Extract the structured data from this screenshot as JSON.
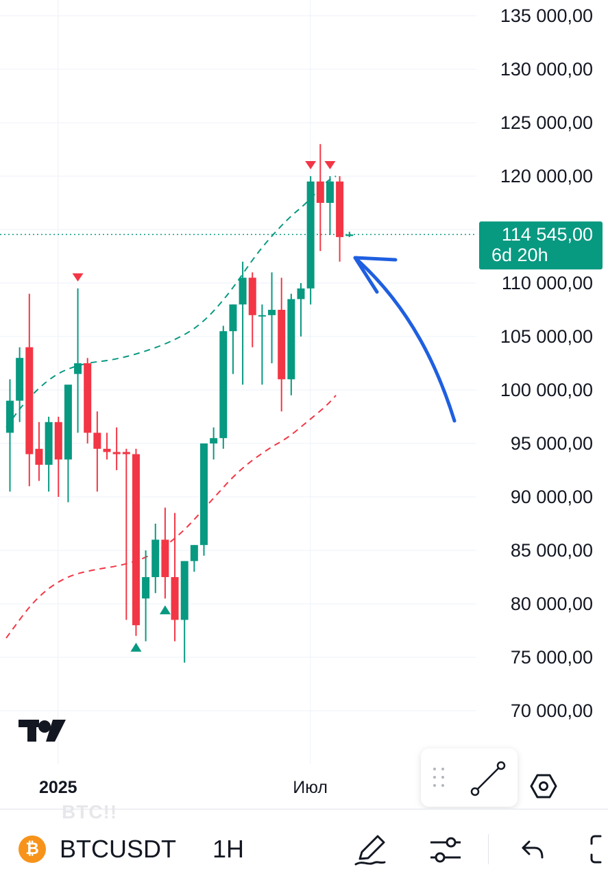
{
  "chart_data": {
    "type": "candlestick",
    "symbol": "BTCUSDT",
    "interval": "1H",
    "y_range": [
      67000,
      137000
    ],
    "price_ticks": [
      "135 000,00",
      "130 000,00",
      "125 000,00",
      "120 000,00",
      "110 000,00",
      "105 000,00",
      "100 000,00",
      "95 000,00",
      "90 000,00",
      "85 000,00",
      "80 000,00",
      "75 000,00",
      "70 000,00"
    ],
    "price_tick_values": [
      135000,
      130000,
      125000,
      120000,
      110000,
      105000,
      100000,
      95000,
      90000,
      85000,
      80000,
      75000,
      70000
    ],
    "time_labels": [
      {
        "label": "2025",
        "bold": true,
        "index": 5
      },
      {
        "label": "Июл",
        "bold": false,
        "index": 31
      }
    ],
    "current_price": {
      "price": 114545,
      "price_label": "114 545,00",
      "countdown": "6d 20h"
    },
    "candles": [
      {
        "o": 96000,
        "h": 101000,
        "l": 90500,
        "c": 99000
      },
      {
        "o": 99000,
        "h": 104000,
        "l": 97000,
        "c": 103000
      },
      {
        "o": 104000,
        "h": 109000,
        "l": 91000,
        "c": 94000
      },
      {
        "o": 94500,
        "h": 97000,
        "l": 91500,
        "c": 93000
      },
      {
        "o": 93000,
        "h": 97500,
        "l": 90500,
        "c": 97000
      },
      {
        "o": 97000,
        "h": 97500,
        "l": 90000,
        "c": 93500
      },
      {
        "o": 93500,
        "h": 100000,
        "l": 89500,
        "c": 100500
      },
      {
        "o": 101500,
        "h": 109500,
        "l": 96000,
        "c": 102500
      },
      {
        "o": 102500,
        "h": 103000,
        "l": 95000,
        "c": 96000
      },
      {
        "o": 96000,
        "h": 98000,
        "l": 90500,
        "c": 94500
      },
      {
        "o": 94500,
        "h": 96000,
        "l": 93500,
        "c": 94200
      },
      {
        "o": 94200,
        "h": 96500,
        "l": 92500,
        "c": 94000
      },
      {
        "o": 94200,
        "h": 94500,
        "l": 78500,
        "c": 94000
      },
      {
        "o": 94000,
        "h": 94500,
        "l": 77000,
        "c": 78000
      },
      {
        "o": 80500,
        "h": 85000,
        "l": 76500,
        "c": 82500
      },
      {
        "o": 82500,
        "h": 87500,
        "l": 81000,
        "c": 86000
      },
      {
        "o": 86000,
        "h": 89000,
        "l": 80500,
        "c": 82500
      },
      {
        "o": 82500,
        "h": 88500,
        "l": 76500,
        "c": 78500
      },
      {
        "o": 78500,
        "h": 84000,
        "l": 74500,
        "c": 84000
      },
      {
        "o": 84000,
        "h": 85500,
        "l": 83000,
        "c": 85500
      },
      {
        "o": 85500,
        "h": 95000,
        "l": 84500,
        "c": 95000
      },
      {
        "o": 95000,
        "h": 96500,
        "l": 93500,
        "c": 95500
      },
      {
        "o": 95500,
        "h": 106000,
        "l": 94500,
        "c": 105500
      },
      {
        "o": 105500,
        "h": 108000,
        "l": 101500,
        "c": 108000
      },
      {
        "o": 108000,
        "h": 112000,
        "l": 100500,
        "c": 110500
      },
      {
        "o": 110500,
        "h": 111000,
        "l": 104000,
        "c": 107000
      },
      {
        "o": 107000,
        "h": 108000,
        "l": 100500,
        "c": 107000
      },
      {
        "o": 107000,
        "h": 111000,
        "l": 102500,
        "c": 107500
      },
      {
        "o": 107500,
        "h": 110500,
        "l": 98000,
        "c": 101000
      },
      {
        "o": 101000,
        "h": 109000,
        "l": 99500,
        "c": 108500
      },
      {
        "o": 108500,
        "h": 110000,
        "l": 105000,
        "c": 109500
      },
      {
        "o": 109500,
        "h": 120000,
        "l": 108000,
        "c": 119500
      },
      {
        "o": 119500,
        "h": 123000,
        "l": 113000,
        "c": 117500
      },
      {
        "o": 117500,
        "h": 120000,
        "l": 114500,
        "c": 119500
      },
      {
        "o": 119500,
        "h": 120000,
        "l": 112000,
        "c": 114300
      },
      {
        "o": 114400,
        "h": 114800,
        "l": 114300,
        "c": 114545
      }
    ],
    "markers": [
      {
        "index": 7,
        "type": "down",
        "color": "#f23645"
      },
      {
        "index": 13,
        "type": "up",
        "color": "#089981"
      },
      {
        "index": 16,
        "type": "up",
        "color": "#089981"
      },
      {
        "index": 31,
        "type": "down",
        "color": "#f23645"
      },
      {
        "index": 33,
        "type": "down",
        "color": "#f23645"
      }
    ],
    "bands": [
      {
        "name": "",
        "color": "#089981",
        "style": "dashed",
        "points": [
          [
            0,
            96500
          ],
          [
            2,
            99000
          ],
          [
            5,
            101500
          ],
          [
            8,
            102500
          ],
          [
            11,
            102800
          ],
          [
            14,
            103500
          ],
          [
            17,
            104500
          ],
          [
            20,
            106000
          ],
          [
            23,
            109000
          ],
          [
            26,
            113000
          ],
          [
            29,
            116000
          ],
          [
            31,
            117500
          ],
          [
            33,
            119500
          ],
          [
            34,
            120000
          ]
        ]
      },
      {
        "name": "",
        "color": "#f23645",
        "style": "dashed",
        "points": [
          [
            0,
            76800
          ],
          [
            3,
            80500
          ],
          [
            6,
            82500
          ],
          [
            9,
            83200
          ],
          [
            12,
            83600
          ],
          [
            15,
            84500
          ],
          [
            18,
            86500
          ],
          [
            21,
            89500
          ],
          [
            24,
            92500
          ],
          [
            27,
            94500
          ],
          [
            29,
            95500
          ],
          [
            31,
            97000
          ],
          [
            33,
            98500
          ],
          [
            34,
            99500
          ]
        ]
      }
    ],
    "annotation": {
      "type": "arrow",
      "color": "#1f5fe0"
    },
    "colors": {
      "up": "#089981",
      "down": "#f23645",
      "grid": "#f0f3fa",
      "badge": "#089981"
    },
    "grid": true
  },
  "toolbar": {
    "ghost_text": "BTC!!",
    "coin_glyph": "₿",
    "symbol": "BTCUSDT",
    "interval": "1H",
    "icons": [
      "bitcoin-icon",
      "pencil-icon",
      "settings-sliders-icon",
      "undo-icon",
      "fullscreen-icon"
    ]
  },
  "drawing_panel": {
    "icons": [
      "drag-handle-icon",
      "trend-line-icon",
      "hexagon-settings-icon"
    ]
  }
}
